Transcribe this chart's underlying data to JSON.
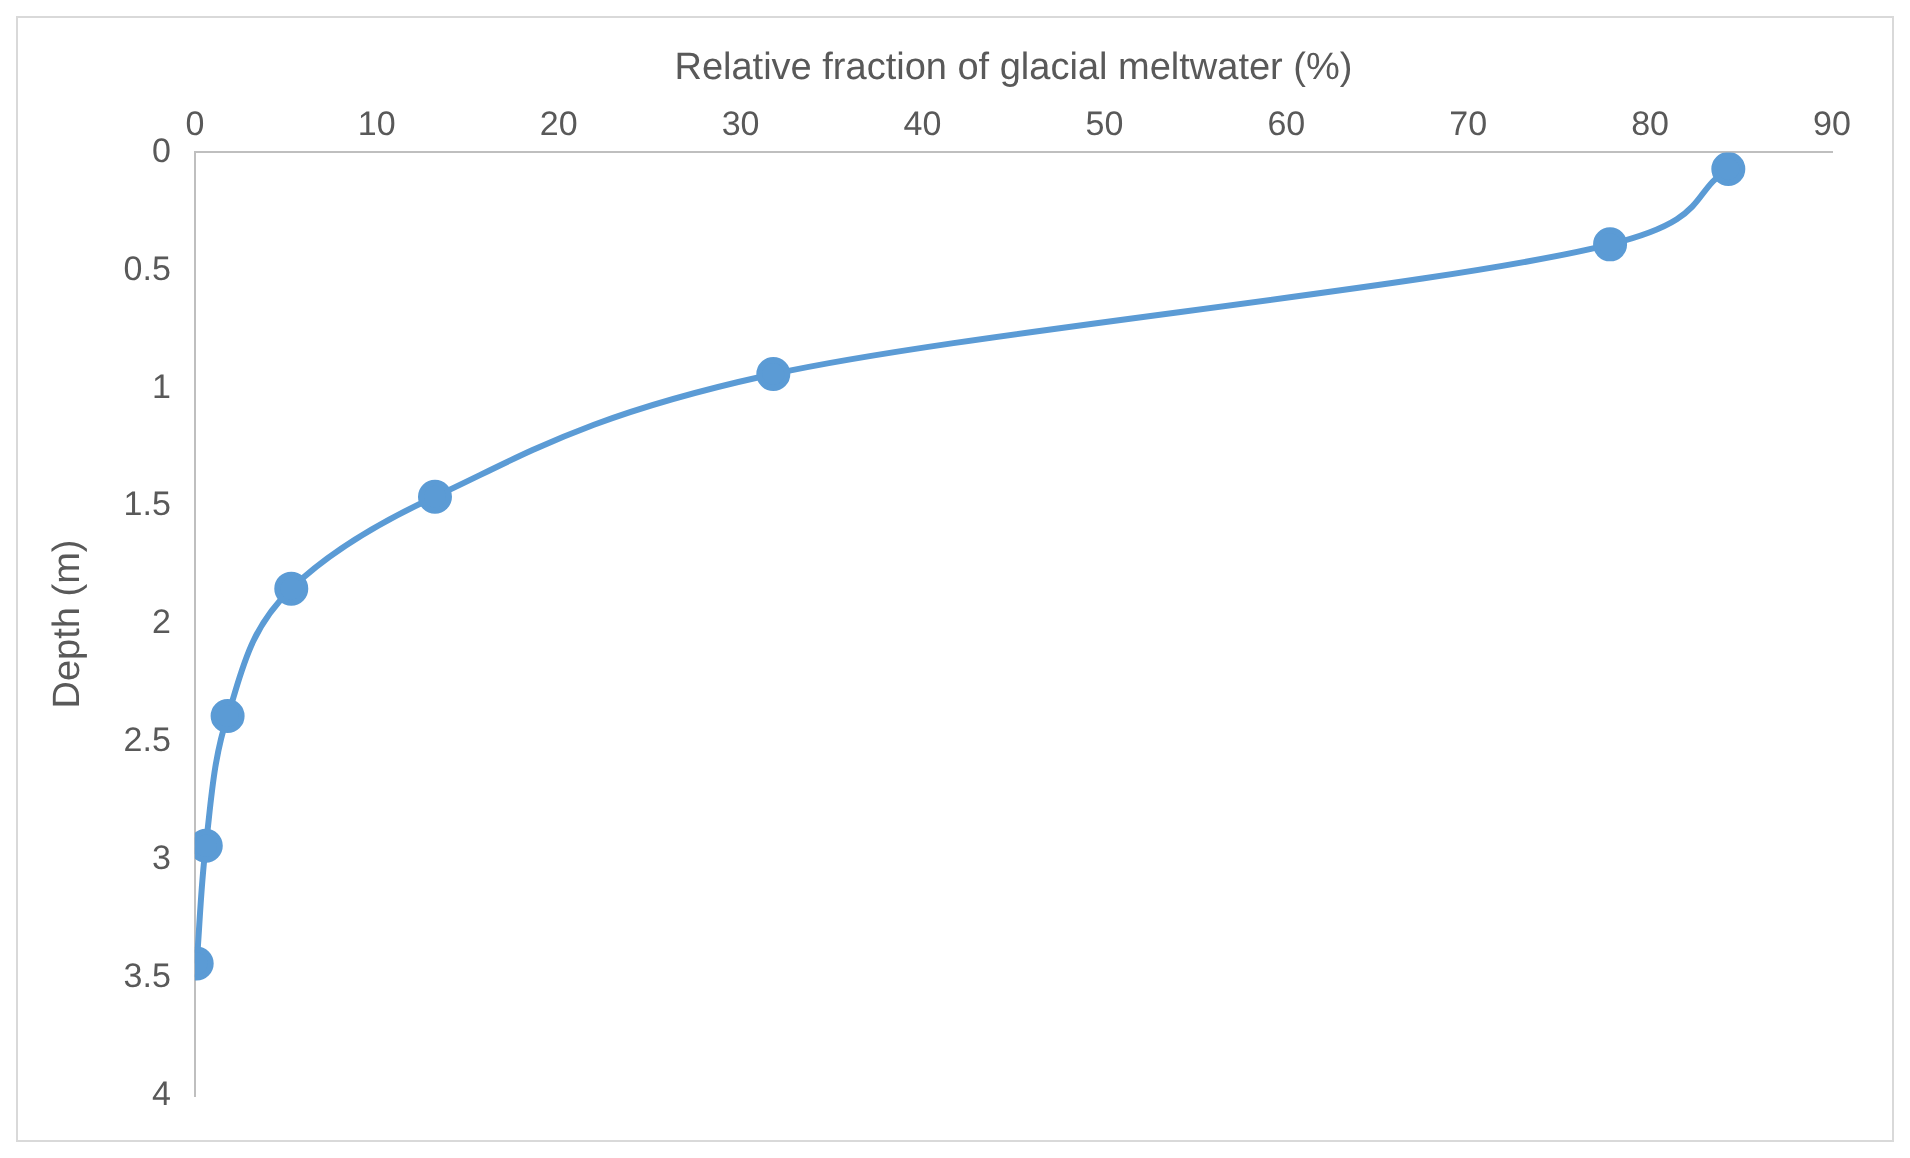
{
  "chart_data": {
    "type": "line",
    "xlabel": "Relative fraction of glacial meltwater (%)",
    "ylabel": "Depth (m)",
    "x": [
      84.3,
      77.8,
      31.8,
      13.2,
      5.3,
      1.8,
      0.6,
      0.1
    ],
    "series": [
      {
        "color": "#5b9bd5",
        "values": [
          0.07,
          0.39,
          0.94,
          1.46,
          1.85,
          2.39,
          2.94,
          3.44
        ]
      }
    ],
    "xlim": [
      0,
      90
    ],
    "xticks": [
      0,
      10,
      20,
      30,
      40,
      50,
      60,
      70,
      80,
      90
    ],
    "ylim": [
      4,
      0
    ],
    "yticks": [
      0,
      0.5,
      1,
      1.5,
      2,
      2.5,
      3,
      3.5,
      4
    ],
    "grid": false,
    "legend": false,
    "marker": "circle",
    "line_style": "solid"
  }
}
